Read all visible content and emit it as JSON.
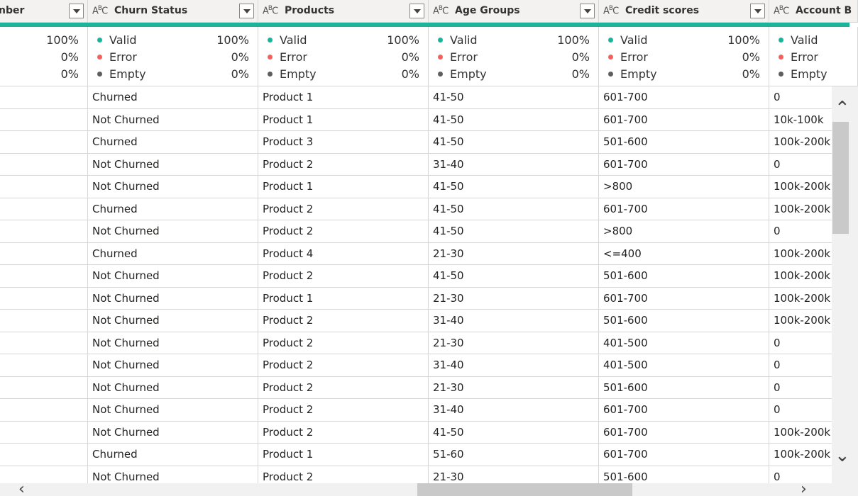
{
  "columns": [
    {
      "name": "nber",
      "type_icon": ""
    },
    {
      "name": "Churn Status",
      "type_icon": "abc-text-type-icon"
    },
    {
      "name": "Products",
      "type_icon": "abc-text-type-icon"
    },
    {
      "name": "Age Groups",
      "type_icon": "abc-text-type-icon"
    },
    {
      "name": "Credit scores",
      "type_icon": "abc-text-type-icon"
    },
    {
      "name": "Account B",
      "type_icon": "abc-text-type-icon"
    }
  ],
  "quality": {
    "labels": {
      "valid": "Valid",
      "error": "Error",
      "empty": "Empty"
    },
    "columns": [
      {
        "valid": "100%",
        "error": "0%",
        "empty": "0%"
      },
      {
        "valid": "100%",
        "error": "0%",
        "empty": "0%"
      },
      {
        "valid": "100%",
        "error": "0%",
        "empty": "0%"
      },
      {
        "valid": "100%",
        "error": "0%",
        "empty": "0%"
      },
      {
        "valid": "100%",
        "error": "0%",
        "empty": "0%"
      },
      {
        "valid": "",
        "error": "",
        "empty": ""
      }
    ],
    "colors": {
      "valid": "#1ab49c",
      "error": "#f0625d",
      "empty": "#605e5c"
    }
  },
  "rows": [
    [
      "",
      "Churned",
      "Product 1",
      "41-50",
      "601-700",
      "0"
    ],
    [
      "",
      "Not Churned",
      "Product 1",
      "41-50",
      "601-700",
      "10k-100k"
    ],
    [
      "",
      "Churned",
      "Product 3",
      "41-50",
      "501-600",
      "100k-200k"
    ],
    [
      "",
      "Not Churned",
      "Product 2",
      "31-40",
      "601-700",
      "0"
    ],
    [
      "",
      "Not Churned",
      "Product 1",
      "41-50",
      ">800",
      "100k-200k"
    ],
    [
      "",
      "Churned",
      "Product 2",
      "41-50",
      "601-700",
      "100k-200k"
    ],
    [
      "",
      "Not Churned",
      "Product 2",
      "41-50",
      ">800",
      "0"
    ],
    [
      "",
      "Churned",
      "Product 4",
      "21-30",
      "<=400",
      "100k-200k"
    ],
    [
      "",
      "Not Churned",
      "Product 2",
      "41-50",
      "501-600",
      "100k-200k"
    ],
    [
      "",
      "Not Churned",
      "Product 1",
      "21-30",
      "601-700",
      "100k-200k"
    ],
    [
      "",
      "Not Churned",
      "Product 2",
      "31-40",
      "501-600",
      "100k-200k"
    ],
    [
      "",
      "Not Churned",
      "Product 2",
      "21-30",
      "401-500",
      "0"
    ],
    [
      "",
      "Not Churned",
      "Product 2",
      "31-40",
      "401-500",
      "0"
    ],
    [
      "",
      "Not Churned",
      "Product 2",
      "21-30",
      "501-600",
      "0"
    ],
    [
      "",
      "Not Churned",
      "Product 2",
      "31-40",
      "601-700",
      "0"
    ],
    [
      "",
      "Not Churned",
      "Product 2",
      "41-50",
      "601-700",
      "100k-200k"
    ],
    [
      "",
      "Churned",
      "Product 1",
      "51-60",
      "601-700",
      "100k-200k"
    ],
    [
      "",
      "Not Churned",
      "Product 2",
      "21-30",
      "501-600",
      "0"
    ]
  ],
  "accent_color": "#1ab49c"
}
